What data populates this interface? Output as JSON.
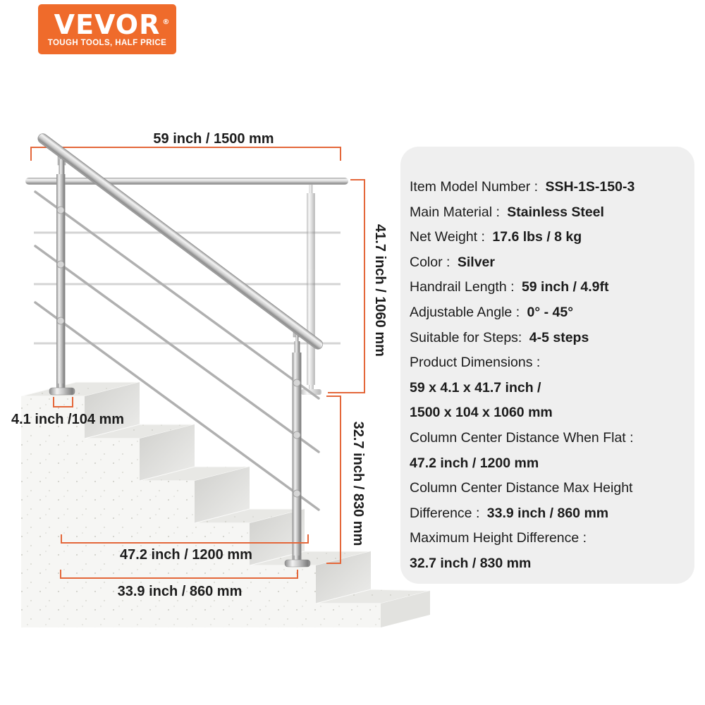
{
  "logo": {
    "brand": "VEVOR",
    "registered": "®",
    "tagline": "TOUGH TOOLS, HALF PRICE"
  },
  "colors": {
    "brand_orange": "#EF6B2B",
    "dimension_orange": "#E4673A",
    "panel_gray": "#EFEFEF",
    "text_dark": "#1B1B1B",
    "steel_silver": "#C9C9C9"
  },
  "diagram": {
    "dim_top": "59 inch / 1500 mm",
    "dim_right_upper": "41.7 inch / 1060 mm",
    "dim_right_lower": "32.7 inch / 830 mm",
    "dim_base_width": "4.1 inch /104 mm",
    "dim_column_flat": "47.2 inch / 1200 mm",
    "dim_column_max": "33.9 inch / 860 mm"
  },
  "specs": {
    "lines": [
      {
        "label": "Item Model Number : ",
        "value": "SSH-1S-150-3"
      },
      {
        "label": "Main Material : ",
        "value": "Stainless Steel"
      },
      {
        "label": "Net Weight : ",
        "value": "17.6 lbs / 8 kg"
      },
      {
        "label": "Color : ",
        "value": "Silver"
      },
      {
        "label": "Handrail Length : ",
        "value": "59 inch / 4.9ft"
      },
      {
        "label": "Adjustable Angle : ",
        "value": "0° - 45°"
      },
      {
        "label": "Suitable for Steps: ",
        "value": "4-5 steps"
      },
      {
        "label": "Product Dimensions : ",
        "value": ""
      },
      {
        "label": "",
        "value": "59 x 4.1 x 41.7 inch /"
      },
      {
        "label": "",
        "value": "1500 x 104 x 1060 mm"
      },
      {
        "label": "Column Center Distance When Flat : ",
        "value": ""
      },
      {
        "label": "",
        "value": "47.2 inch / 1200 mm"
      },
      {
        "label": "Column Center Distance Max Height",
        "value": ""
      },
      {
        "label": "Difference : ",
        "value": "33.9 inch / 860 mm"
      },
      {
        "label": "Maximum Height Difference : ",
        "value": ""
      },
      {
        "label": "",
        "value": "32.7 inch / 830 mm"
      }
    ]
  }
}
